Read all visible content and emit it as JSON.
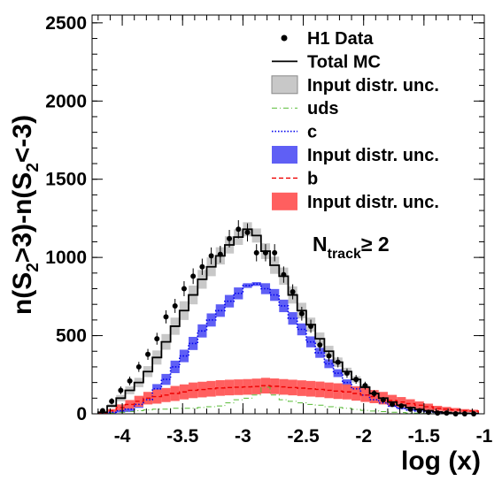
{
  "chart_data": {
    "type": "line",
    "xlabel": "log (x)",
    "ylabel": "n(S2>3)-n(S2<-3)",
    "ylabel_parts": {
      "main": "n(S",
      "sub1": "2",
      "mid": ">3)-n(S",
      "sub2": "2",
      "end": "<-3)"
    },
    "xlim": [
      -4.25,
      -1.0
    ],
    "ylim": [
      0,
      2550
    ],
    "x_ticks": [
      -4,
      -3.5,
      -3,
      -2.5,
      -2,
      -1.5,
      -1
    ],
    "x_tick_labels": [
      "-4",
      "-3.5",
      "-3",
      "-2.5",
      "-2",
      "-1.5",
      "-1"
    ],
    "y_ticks": [
      0,
      500,
      1000,
      1500,
      2000,
      2500
    ],
    "y_tick_labels": [
      "0",
      "500",
      "1000",
      "1500",
      "2000",
      "2500"
    ],
    "annotation": {
      "main": "N",
      "sub": "track",
      "rest": "≥ 2"
    },
    "legend": [
      {
        "label": "H1 Data",
        "style": "marker"
      },
      {
        "label": "Total MC",
        "style": "solid-black"
      },
      {
        "label": "Input distr. unc.",
        "style": "box-gray"
      },
      {
        "label": "uds",
        "style": "dashdot-green"
      },
      {
        "label": "c",
        "style": "dotted-blue"
      },
      {
        "label": "Input distr. unc.",
        "style": "box-blue"
      },
      {
        "label": "b",
        "style": "dashed-red"
      },
      {
        "label": "Input distr. unc.",
        "style": "box-red"
      }
    ],
    "bin_edges": [
      -4.2,
      -4.125,
      -4.05,
      -3.975,
      -3.9,
      -3.825,
      -3.75,
      -3.675,
      -3.6,
      -3.525,
      -3.45,
      -3.375,
      -3.3,
      -3.225,
      -3.15,
      -3.075,
      -3.0,
      -2.925,
      -2.85,
      -2.775,
      -2.7,
      -2.625,
      -2.55,
      -2.475,
      -2.4,
      -2.325,
      -2.25,
      -2.175,
      -2.1,
      -2.025,
      -1.95,
      -1.875,
      -1.8,
      -1.725,
      -1.65,
      -1.575,
      -1.5,
      -1.425,
      -1.35,
      -1.275,
      -1.2,
      -1.125,
      -1.05
    ],
    "series": [
      {
        "name": "H1 Data",
        "kind": "points",
        "values": [
          20,
          80,
          150,
          210,
          300,
          380,
          480,
          620,
          690,
          800,
          880,
          940,
          1010,
          1020,
          1120,
          1180,
          1160,
          1030,
          1030,
          1030,
          890,
          780,
          640,
          560,
          440,
          370,
          330,
          260,
          220,
          180,
          130,
          90,
          60,
          50,
          30,
          20,
          10,
          5,
          5,
          0,
          0,
          0
        ],
        "errors": [
          15,
          20,
          25,
          28,
          32,
          35,
          38,
          42,
          45,
          48,
          50,
          52,
          54,
          54,
          56,
          58,
          58,
          55,
          55,
          55,
          52,
          48,
          44,
          42,
          38,
          35,
          33,
          30,
          28,
          25,
          22,
          18,
          15,
          13,
          10,
          8,
          6,
          4,
          4,
          3,
          3,
          3
        ]
      },
      {
        "name": "Total MC",
        "kind": "hist",
        "values": [
          10,
          50,
          100,
          150,
          200,
          270,
          360,
          460,
          560,
          660,
          760,
          860,
          940,
          1010,
          1080,
          1130,
          1180,
          1140,
          1040,
          950,
          880,
          760,
          660,
          570,
          480,
          400,
          330,
          270,
          220,
          170,
          130,
          100,
          75,
          55,
          40,
          28,
          20,
          12,
          8,
          5,
          3,
          2
        ],
        "unc": [
          8,
          12,
          20,
          25,
          30,
          35,
          45,
          50,
          55,
          60,
          60,
          60,
          60,
          55,
          55,
          50,
          45,
          45,
          50,
          55,
          55,
          55,
          50,
          45,
          40,
          35,
          30,
          25,
          20,
          15,
          12,
          10,
          8,
          6,
          5,
          4,
          3,
          2,
          2,
          1,
          1,
          1
        ]
      },
      {
        "name": "uds",
        "kind": "hist",
        "values": [
          0,
          5,
          10,
          15,
          20,
          25,
          30,
          30,
          35,
          35,
          35,
          40,
          45,
          50,
          70,
          90,
          100,
          120,
          170,
          120,
          90,
          80,
          70,
          60,
          55,
          45,
          40,
          35,
          28,
          22,
          18,
          14,
          10,
          8,
          5,
          4,
          3,
          2,
          1,
          0,
          0,
          0
        ]
      },
      {
        "name": "c",
        "kind": "hist",
        "values": [
          2,
          10,
          20,
          30,
          60,
          90,
          160,
          220,
          300,
          370,
          450,
          530,
          600,
          660,
          720,
          770,
          820,
          830,
          800,
          760,
          690,
          610,
          540,
          460,
          390,
          320,
          260,
          200,
          160,
          120,
          90,
          70,
          50,
          35,
          25,
          18,
          12,
          8,
          5,
          3,
          2,
          1
        ],
        "unc": [
          3,
          8,
          12,
          18,
          22,
          28,
          30,
          35,
          40,
          40,
          42,
          42,
          42,
          40,
          40,
          38,
          15,
          12,
          35,
          38,
          40,
          40,
          38,
          35,
          32,
          28,
          25,
          20,
          16,
          12,
          10,
          8,
          6,
          5,
          4,
          3,
          2,
          2,
          1,
          1,
          1,
          1
        ]
      },
      {
        "name": "b",
        "kind": "hist",
        "values": [
          5,
          20,
          40,
          60,
          80,
          100,
          110,
          120,
          130,
          140,
          150,
          155,
          160,
          165,
          168,
          170,
          172,
          175,
          180,
          176,
          172,
          168,
          164,
          160,
          156,
          150,
          145,
          140,
          130,
          120,
          110,
          100,
          85,
          75,
          65,
          55,
          45,
          35,
          30,
          25,
          20,
          18
        ],
        "unc": [
          5,
          10,
          20,
          28,
          35,
          40,
          45,
          45,
          48,
          48,
          50,
          50,
          50,
          50,
          50,
          50,
          50,
          50,
          50,
          50,
          50,
          50,
          50,
          50,
          50,
          50,
          50,
          48,
          46,
          44,
          42,
          40,
          36,
          32,
          28,
          24,
          20,
          16,
          14,
          12,
          10,
          8
        ]
      }
    ],
    "colors": {
      "data": "#000000",
      "total": "#000000",
      "total_band": "#c8c8c8",
      "uds": "#55bb33",
      "c": "#0000ee",
      "c_band": "#5f5ff5",
      "b": "#ee0000",
      "b_band": "#ff5f5f"
    }
  }
}
